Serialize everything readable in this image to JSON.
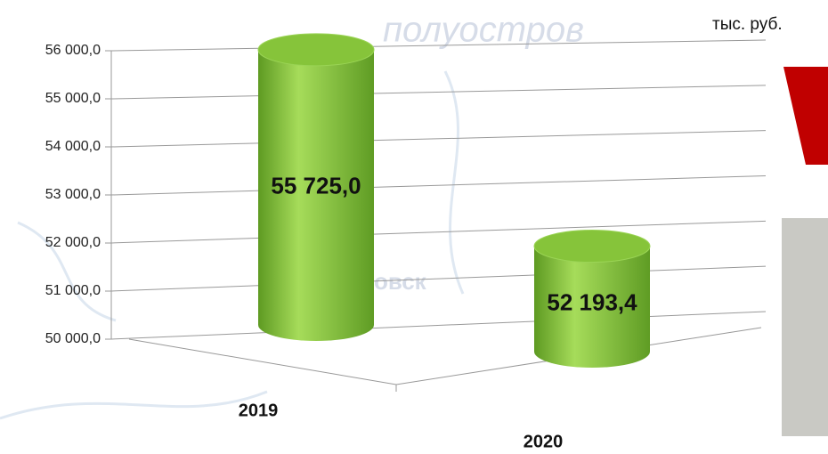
{
  "chart_data": {
    "type": "bar3d",
    "unit_label": "тыс. руб.",
    "watermark_texts": [
      "полуостров",
      "овск"
    ],
    "categories": [
      "2019",
      "2020"
    ],
    "values": [
      55725,
      52193.4
    ],
    "value_labels": [
      "55 725,0",
      "52 193,4"
    ],
    "color": "#86c43a",
    "ylim": [
      50000,
      56000
    ],
    "yticks": [
      {
        "value": 50000,
        "label": "50 000,0"
      },
      {
        "value": 51000,
        "label": "51 000,0"
      },
      {
        "value": 52000,
        "label": "52 000,0"
      },
      {
        "value": 53000,
        "label": "53 000,0"
      },
      {
        "value": 54000,
        "label": "54 000,0"
      },
      {
        "value": 55000,
        "label": "55 000,0"
      },
      {
        "value": 56000,
        "label": "56 000,0"
      }
    ],
    "grid": true
  }
}
